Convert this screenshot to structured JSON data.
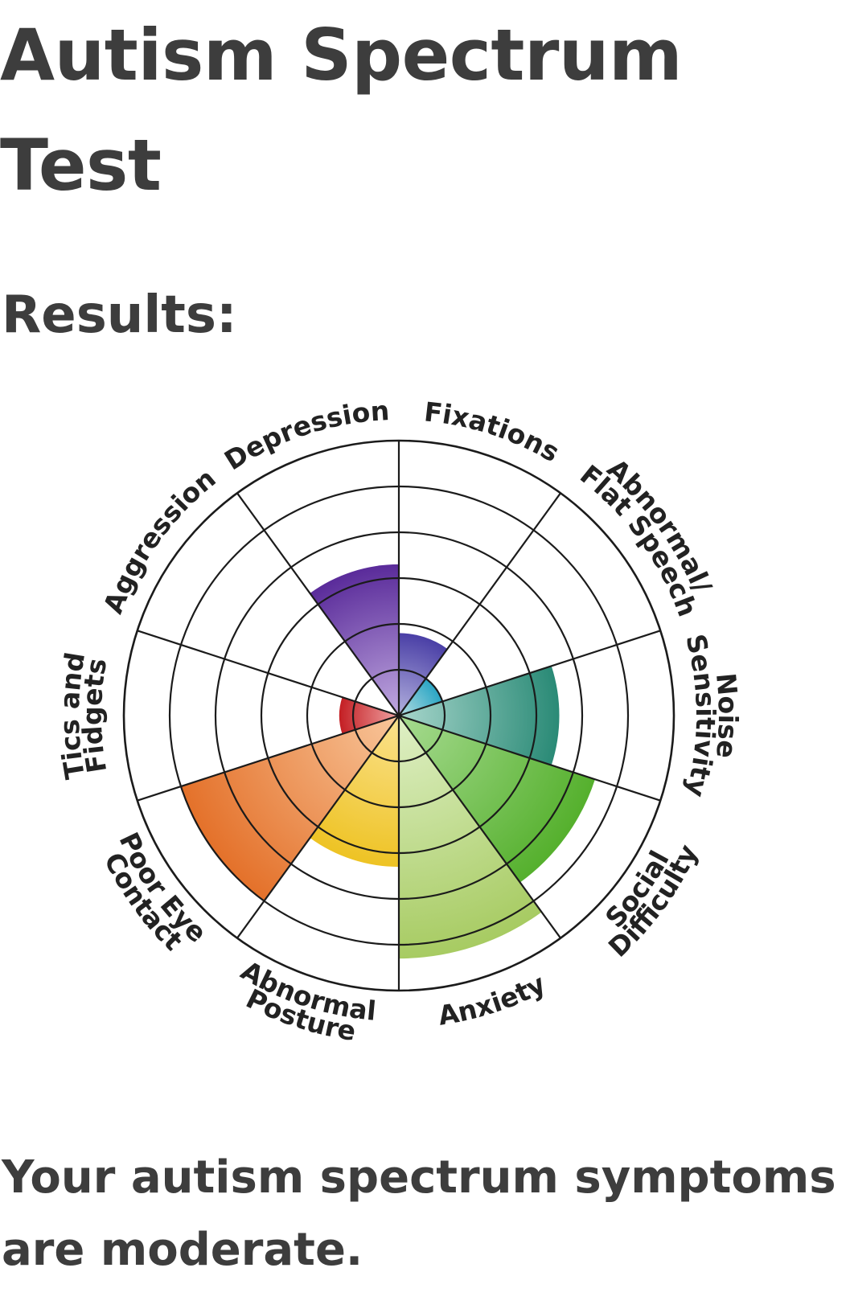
{
  "page": {
    "title_line1": "Autism Spectrum",
    "title_line2": "Test",
    "subtitle": "Results:",
    "result_line1": "Your autism spectrum symptoms",
    "result_line2": "are moderate."
  },
  "chart_data": {
    "type": "polar-area",
    "rings": 6,
    "rmax": 6,
    "grid": true,
    "categories": [
      {
        "label": [
          "Fixations"
        ],
        "value": 1.8,
        "color_inner": "#b3b1de",
        "color_outer": "#4a3fa6"
      },
      {
        "label": [
          "Abnormal/",
          "Flat Speech"
        ],
        "value": 1.0,
        "color_inner": "#b6dde2",
        "color_outer": "#2aa6c4"
      },
      {
        "label": [
          "Noise",
          "Sensitivity"
        ],
        "value": 3.5,
        "color_inner": "#a8d6cc",
        "color_outer": "#2a8a76"
      },
      {
        "label": [
          "Social",
          "Difficulty"
        ],
        "value": 4.5,
        "color_inner": "#a7db91",
        "color_outer": "#55b02d"
      },
      {
        "label": [
          "Anxiety"
        ],
        "value": 5.3,
        "color_inner": "#dff0c6",
        "color_outer": "#a7cb62"
      },
      {
        "label": [
          "Abnormal",
          "Posture"
        ],
        "value": 3.3,
        "color_inner": "#fbe28f",
        "color_outer": "#eec324"
      },
      {
        "label": [
          "Poor Eye",
          "Contact"
        ],
        "value": 5.0,
        "color_inner": "#f8c69b",
        "color_outer": "#e4712a"
      },
      {
        "label": [
          "Tics and",
          "Fidgets"
        ],
        "value": 1.3,
        "color_inner": "#f0a4a4",
        "color_outer": "#c41f24"
      },
      {
        "label": [
          "Aggression"
        ],
        "value": 0,
        "color_inner": "#ffffff",
        "color_outer": "#ffffff"
      },
      {
        "label": [
          "Depression"
        ],
        "value": 3.3,
        "color_inner": "#c0a9e0",
        "color_outer": "#5a2b9a"
      }
    ]
  }
}
